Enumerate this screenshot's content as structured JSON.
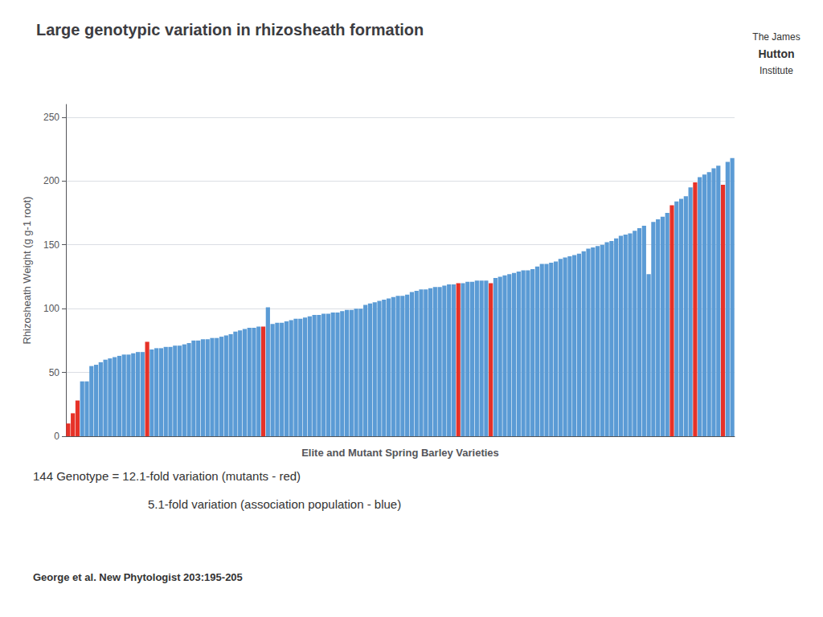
{
  "chart_data": {
    "type": "bar",
    "title": "Large genotypic variation in rhizosheath formation",
    "xlabel": "Elite and Mutant Spring Barley Varieties",
    "ylabel": "Rhizosheath Weight (g g-1 root)",
    "annotations": [
      "144 Genotype = 12.1-fold variation (mutants - red)",
      "5.1-fold variation (association population - blue)",
      "George et al. New Phytologist 203:195-205",
      "The James",
      "Hutton",
      "Institute"
    ],
    "categories": [
      null,
      null,
      null,
      null,
      null,
      null,
      null,
      null,
      null,
      null,
      null,
      null,
      null,
      null,
      null,
      null,
      null,
      null,
      null,
      null,
      null,
      null,
      null,
      null,
      null,
      null,
      null,
      null,
      null,
      null,
      null,
      null,
      null,
      null,
      null,
      null,
      null,
      null,
      null,
      null,
      null,
      null,
      null,
      null,
      null,
      null,
      null,
      null,
      null,
      null,
      null,
      null,
      null,
      null,
      null,
      null,
      null,
      null,
      null,
      null,
      null,
      null,
      null,
      null,
      null,
      null,
      null,
      null,
      null,
      null,
      null,
      null,
      null,
      null,
      null,
      null,
      null,
      null,
      null,
      null,
      null,
      null,
      null,
      null,
      null,
      null,
      null,
      null,
      null,
      null,
      null,
      null,
      null,
      null,
      null,
      null,
      null,
      null,
      null,
      null,
      null,
      null,
      null,
      null,
      null,
      null,
      null,
      null,
      null,
      null,
      null,
      null,
      null,
      null,
      null,
      null,
      null,
      null,
      null,
      null,
      null,
      null,
      null,
      null,
      null,
      null,
      null,
      null,
      null,
      null,
      null,
      null,
      null,
      null,
      null,
      null,
      null,
      null,
      null,
      null,
      null,
      null,
      null,
      null
    ],
    "values": [
      10,
      18,
      28,
      43,
      43,
      55,
      56,
      58,
      60,
      61,
      62,
      63,
      64,
      64,
      65,
      66,
      66,
      74,
      68,
      69,
      69,
      70,
      70,
      71,
      71,
      72,
      73,
      75,
      75,
      76,
      76,
      77,
      77,
      78,
      79,
      80,
      82,
      83,
      84,
      85,
      85,
      86,
      86,
      101,
      88,
      89,
      89,
      90,
      91,
      92,
      92,
      93,
      94,
      95,
      95,
      96,
      96,
      97,
      97,
      98,
      99,
      99,
      100,
      100,
      103,
      104,
      105,
      106,
      107,
      108,
      109,
      110,
      110,
      111,
      113,
      114,
      115,
      115,
      116,
      117,
      117,
      118,
      119,
      119,
      120,
      120,
      121,
      121,
      122,
      122,
      122,
      120,
      124,
      125,
      126,
      127,
      128,
      129,
      130,
      130,
      131,
      133,
      135,
      135,
      136,
      137,
      139,
      140,
      141,
      142,
      143,
      145,
      147,
      148,
      149,
      150,
      152,
      153,
      155,
      157,
      158,
      159,
      161,
      163,
      165,
      127,
      168,
      170,
      172,
      175,
      181,
      184,
      186,
      188,
      195,
      199,
      203,
      205,
      207,
      210,
      212,
      197,
      215,
      218
    ],
    "colors": [
      "#e63228",
      "#e63228",
      "#e63228",
      "#5b9bd5",
      "#5b9bd5",
      "#5b9bd5",
      "#5b9bd5",
      "#5b9bd5",
      "#5b9bd5",
      "#5b9bd5",
      "#5b9bd5",
      "#5b9bd5",
      "#5b9bd5",
      "#5b9bd5",
      "#5b9bd5",
      "#5b9bd5",
      "#5b9bd5",
      "#e63228",
      "#5b9bd5",
      "#5b9bd5",
      "#5b9bd5",
      "#5b9bd5",
      "#5b9bd5",
      "#5b9bd5",
      "#5b9bd5",
      "#5b9bd5",
      "#5b9bd5",
      "#5b9bd5",
      "#5b9bd5",
      "#5b9bd5",
      "#5b9bd5",
      "#5b9bd5",
      "#5b9bd5",
      "#5b9bd5",
      "#5b9bd5",
      "#5b9bd5",
      "#5b9bd5",
      "#5b9bd5",
      "#5b9bd5",
      "#5b9bd5",
      "#5b9bd5",
      "#5b9bd5",
      "#e63228",
      "#5b9bd5",
      "#5b9bd5",
      "#5b9bd5",
      "#5b9bd5",
      "#5b9bd5",
      "#5b9bd5",
      "#5b9bd5",
      "#5b9bd5",
      "#5b9bd5",
      "#5b9bd5",
      "#5b9bd5",
      "#5b9bd5",
      "#5b9bd5",
      "#5b9bd5",
      "#5b9bd5",
      "#5b9bd5",
      "#5b9bd5",
      "#5b9bd5",
      "#5b9bd5",
      "#5b9bd5",
      "#5b9bd5",
      "#5b9bd5",
      "#5b9bd5",
      "#5b9bd5",
      "#5b9bd5",
      "#5b9bd5",
      "#5b9bd5",
      "#5b9bd5",
      "#5b9bd5",
      "#5b9bd5",
      "#5b9bd5",
      "#5b9bd5",
      "#5b9bd5",
      "#5b9bd5",
      "#5b9bd5",
      "#5b9bd5",
      "#5b9bd5",
      "#5b9bd5",
      "#5b9bd5",
      "#5b9bd5",
      "#5b9bd5",
      "#e63228",
      "#5b9bd5",
      "#5b9bd5",
      "#5b9bd5",
      "#5b9bd5",
      "#5b9bd5",
      "#5b9bd5",
      "#e63228",
      "#5b9bd5",
      "#5b9bd5",
      "#5b9bd5",
      "#5b9bd5",
      "#5b9bd5",
      "#5b9bd5",
      "#5b9bd5",
      "#5b9bd5",
      "#5b9bd5",
      "#5b9bd5",
      "#5b9bd5",
      "#5b9bd5",
      "#5b9bd5",
      "#5b9bd5",
      "#5b9bd5",
      "#5b9bd5",
      "#5b9bd5",
      "#5b9bd5",
      "#5b9bd5",
      "#5b9bd5",
      "#5b9bd5",
      "#5b9bd5",
      "#5b9bd5",
      "#5b9bd5",
      "#5b9bd5",
      "#5b9bd5",
      "#5b9bd5",
      "#5b9bd5",
      "#5b9bd5",
      "#5b9bd5",
      "#5b9bd5",
      "#5b9bd5",
      "#5b9bd5",
      "#5b9bd5",
      "#5b9bd5",
      "#5b9bd5",
      "#5b9bd5",
      "#5b9bd5",
      "#e63228",
      "#5b9bd5",
      "#5b9bd5",
      "#5b9bd5",
      "#5b9bd5",
      "#e63228",
      "#5b9bd5",
      "#5b9bd5",
      "#5b9bd5",
      "#5b9bd5",
      "#5b9bd5",
      "#e63228",
      "#5b9bd5",
      "#5b9bd5"
    ],
    "ylim": [
      0,
      260
    ],
    "yticks": [
      0,
      50,
      100,
      150,
      200,
      250
    ],
    "grid": true,
    "tick_labels": "y"
  }
}
